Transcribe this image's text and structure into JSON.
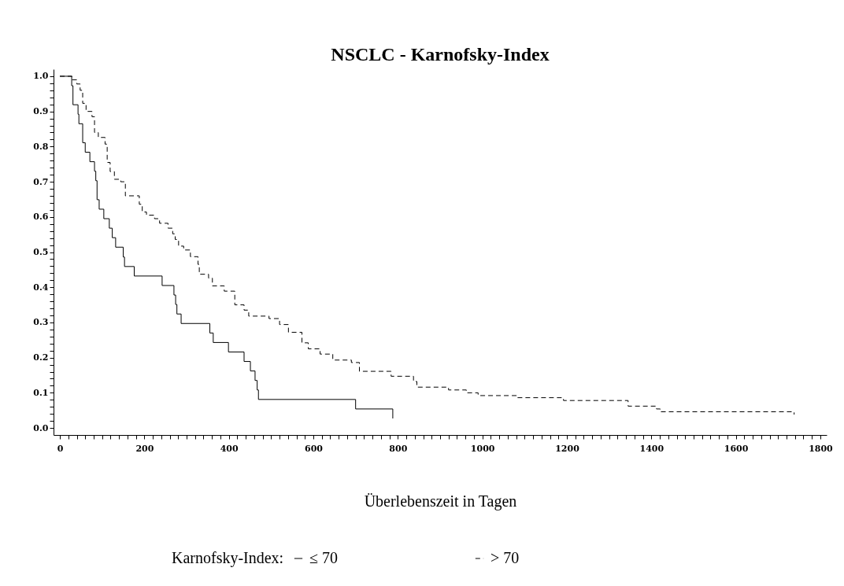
{
  "chart_data": {
    "type": "step",
    "title": "NSCLC - Karnofsky-Index",
    "xlabel": "Überlebenszeit in Tagen",
    "legend_title": "Karnofsky-Index:",
    "legend": "bottom",
    "grid": false,
    "marker": "none",
    "xlim": [
      -15,
      1815
    ],
    "ylim": [
      -0.02,
      1.02
    ],
    "xticks": [
      0,
      {
        "value": 20,
        "label": null
      },
      {
        "value": 40,
        "label": null
      },
      {
        "value": 60,
        "label": null
      },
      {
        "value": 80,
        "label": null
      },
      {
        "value": 100,
        "label": null
      },
      {
        "value": 120,
        "label": null
      },
      {
        "value": 140,
        "label": null
      },
      {
        "value": 160,
        "label": null
      },
      {
        "value": 180,
        "label": null
      },
      200,
      {
        "value": 220,
        "label": null
      },
      {
        "value": 240,
        "label": null
      },
      {
        "value": 260,
        "label": null
      },
      {
        "value": 280,
        "label": null
      },
      {
        "value": 300,
        "label": null
      },
      {
        "value": 320,
        "label": null
      },
      {
        "value": 340,
        "label": null
      },
      {
        "value": 360,
        "label": null
      },
      {
        "value": 380,
        "label": null
      },
      400,
      {
        "value": 420,
        "label": null
      },
      {
        "value": 440,
        "label": null
      },
      {
        "value": 460,
        "label": null
      },
      {
        "value": 480,
        "label": null
      },
      {
        "value": 500,
        "label": null
      },
      {
        "value": 520,
        "label": null
      },
      {
        "value": 540,
        "label": null
      },
      {
        "value": 560,
        "label": null
      },
      {
        "value": 580,
        "label": null
      },
      600,
      {
        "value": 620,
        "label": null
      },
      {
        "value": 640,
        "label": null
      },
      {
        "value": 660,
        "label": null
      },
      {
        "value": 680,
        "label": null
      },
      {
        "value": 700,
        "label": null
      },
      {
        "value": 720,
        "label": null
      },
      {
        "value": 740,
        "label": null
      },
      {
        "value": 760,
        "label": null
      },
      {
        "value": 780,
        "label": null
      },
      800,
      {
        "value": 820,
        "label": null
      },
      {
        "value": 840,
        "label": null
      },
      {
        "value": 860,
        "label": null
      },
      {
        "value": 880,
        "label": null
      },
      {
        "value": 900,
        "label": null
      },
      {
        "value": 920,
        "label": null
      },
      {
        "value": 940,
        "label": null
      },
      {
        "value": 960,
        "label": null
      },
      {
        "value": 980,
        "label": null
      },
      1000,
      {
        "value": 1020,
        "label": null
      },
      {
        "value": 1040,
        "label": null
      },
      {
        "value": 1060,
        "label": null
      },
      {
        "value": 1080,
        "label": null
      },
      {
        "value": 1100,
        "label": null
      },
      {
        "value": 1120,
        "label": null
      },
      {
        "value": 1140,
        "label": null
      },
      {
        "value": 1160,
        "label": null
      },
      {
        "value": 1180,
        "label": null
      },
      1200,
      {
        "value": 1220,
        "label": null
      },
      {
        "value": 1240,
        "label": null
      },
      {
        "value": 1260,
        "label": null
      },
      {
        "value": 1280,
        "label": null
      },
      {
        "value": 1300,
        "label": null
      },
      {
        "value": 1320,
        "label": null
      },
      {
        "value": 1340,
        "label": null
      },
      {
        "value": 1360,
        "label": null
      },
      {
        "value": 1380,
        "label": null
      },
      1400,
      {
        "value": 1420,
        "label": null
      },
      {
        "value": 1440,
        "label": null
      },
      {
        "value": 1460,
        "label": null
      },
      {
        "value": 1480,
        "label": null
      },
      {
        "value": 1500,
        "label": null
      },
      {
        "value": 1520,
        "label": null
      },
      {
        "value": 1540,
        "label": null
      },
      {
        "value": 1560,
        "label": null
      },
      {
        "value": 1580,
        "label": null
      },
      1600,
      {
        "value": 1620,
        "label": null
      },
      {
        "value": 1640,
        "label": null
      },
      {
        "value": 1660,
        "label": null
      },
      {
        "value": 1680,
        "label": null
      },
      {
        "value": 1700,
        "label": null
      },
      {
        "value": 1720,
        "label": null
      },
      {
        "value": 1740,
        "label": null
      },
      {
        "value": 1760,
        "label": null
      },
      {
        "value": 1780,
        "label": null
      },
      1800
    ],
    "yticks": [
      {
        "value": 0,
        "label": "0.0"
      },
      {
        "value": 0.02,
        "label": null
      },
      {
        "value": 0.04,
        "label": null
      },
      {
        "value": 0.06,
        "label": null
      },
      {
        "value": 0.08,
        "label": null
      },
      0.1,
      {
        "value": 0.12,
        "label": null
      },
      {
        "value": 0.14,
        "label": null
      },
      {
        "value": 0.16,
        "label": null
      },
      {
        "value": 0.18,
        "label": null
      },
      0.2,
      {
        "value": 0.22,
        "label": null
      },
      {
        "value": 0.24,
        "label": null
      },
      {
        "value": 0.26,
        "label": null
      },
      {
        "value": 0.28,
        "label": null
      },
      0.3,
      {
        "value": 0.32,
        "label": null
      },
      {
        "value": 0.34,
        "label": null
      },
      {
        "value": 0.36,
        "label": null
      },
      {
        "value": 0.38,
        "label": null
      },
      0.4,
      {
        "value": 0.42,
        "label": null
      },
      {
        "value": 0.44,
        "label": null
      },
      {
        "value": 0.46,
        "label": null
      },
      {
        "value": 0.48,
        "label": null
      },
      0.5,
      {
        "value": 0.52,
        "label": null
      },
      {
        "value": 0.54,
        "label": null
      },
      {
        "value": 0.56,
        "label": null
      },
      {
        "value": 0.58,
        "label": null
      },
      0.6,
      {
        "value": 0.62,
        "label": null
      },
      {
        "value": 0.64,
        "label": null
      },
      {
        "value": 0.66,
        "label": null
      },
      {
        "value": 0.68,
        "label": null
      },
      0.7,
      {
        "value": 0.72,
        "label": null
      },
      {
        "value": 0.74,
        "label": null
      },
      {
        "value": 0.76,
        "label": null
      },
      {
        "value": 0.78,
        "label": null
      },
      0.8,
      {
        "value": 0.82,
        "label": null
      },
      {
        "value": 0.84,
        "label": null
      },
      {
        "value": 0.86,
        "label": null
      },
      {
        "value": 0.88,
        "label": null
      },
      0.9,
      {
        "value": 0.92,
        "label": null
      },
      {
        "value": 0.94,
        "label": null
      },
      {
        "value": 0.96,
        "label": null
      },
      {
        "value": 0.98,
        "label": null
      },
      {
        "value": 1,
        "label": "1.0"
      }
    ],
    "series": [
      {
        "name": "≤ 70",
        "color": "#000000",
        "line_style": "solid",
        "x": [
          0,
          28,
          31,
          43,
          45,
          54,
          60,
          71,
          82,
          85,
          88,
          93,
          104,
          117,
          124,
          132,
          150,
          153,
          176,
          242,
          270,
          274,
          277,
          287,
          355,
          363,
          399,
          436,
          451,
          462,
          467,
          470,
          700,
          788
        ],
        "values": [
          1.0,
          0.973,
          0.919,
          0.892,
          0.865,
          0.811,
          0.784,
          0.757,
          0.73,
          0.703,
          0.649,
          0.622,
          0.595,
          0.568,
          0.541,
          0.514,
          0.486,
          0.459,
          0.432,
          0.405,
          0.378,
          0.351,
          0.324,
          0.297,
          0.27,
          0.243,
          0.216,
          0.189,
          0.162,
          0.135,
          0.108,
          0.081,
          0.054,
          0.027
        ]
      },
      {
        "name": "> 70",
        "color": "#000000",
        "line_style": "dashed",
        "x": [
          0,
          29,
          40,
          48,
          54,
          62,
          76,
          82,
          91,
          107,
          112,
          119,
          129,
          144,
          155,
          188,
          195,
          205,
          224,
          236,
          256,
          267,
          273,
          281,
          293,
          309,
          327,
          330,
          352,
          361,
          389,
          414,
          436,
          447,
          495,
          520,
          541,
          573,
          588,
          616,
          646,
          690,
          709,
          784,
          837,
          845,
          920,
          962,
          990,
          1083,
          1192,
          1345,
          1412,
          1421,
          1738
        ],
        "values": [
          1.0,
          0.99,
          0.978,
          0.96,
          0.923,
          0.9,
          0.885,
          0.84,
          0.826,
          0.807,
          0.755,
          0.729,
          0.707,
          0.7,
          0.66,
          0.636,
          0.614,
          0.605,
          0.595,
          0.582,
          0.568,
          0.552,
          0.536,
          0.517,
          0.506,
          0.487,
          0.465,
          0.437,
          0.426,
          0.404,
          0.389,
          0.35,
          0.335,
          0.318,
          0.311,
          0.294,
          0.272,
          0.242,
          0.225,
          0.21,
          0.193,
          0.186,
          0.161,
          0.147,
          0.132,
          0.116,
          0.108,
          0.1,
          0.092,
          0.086,
          0.078,
          0.062,
          0.054,
          0.046,
          0.038
        ]
      }
    ]
  }
}
